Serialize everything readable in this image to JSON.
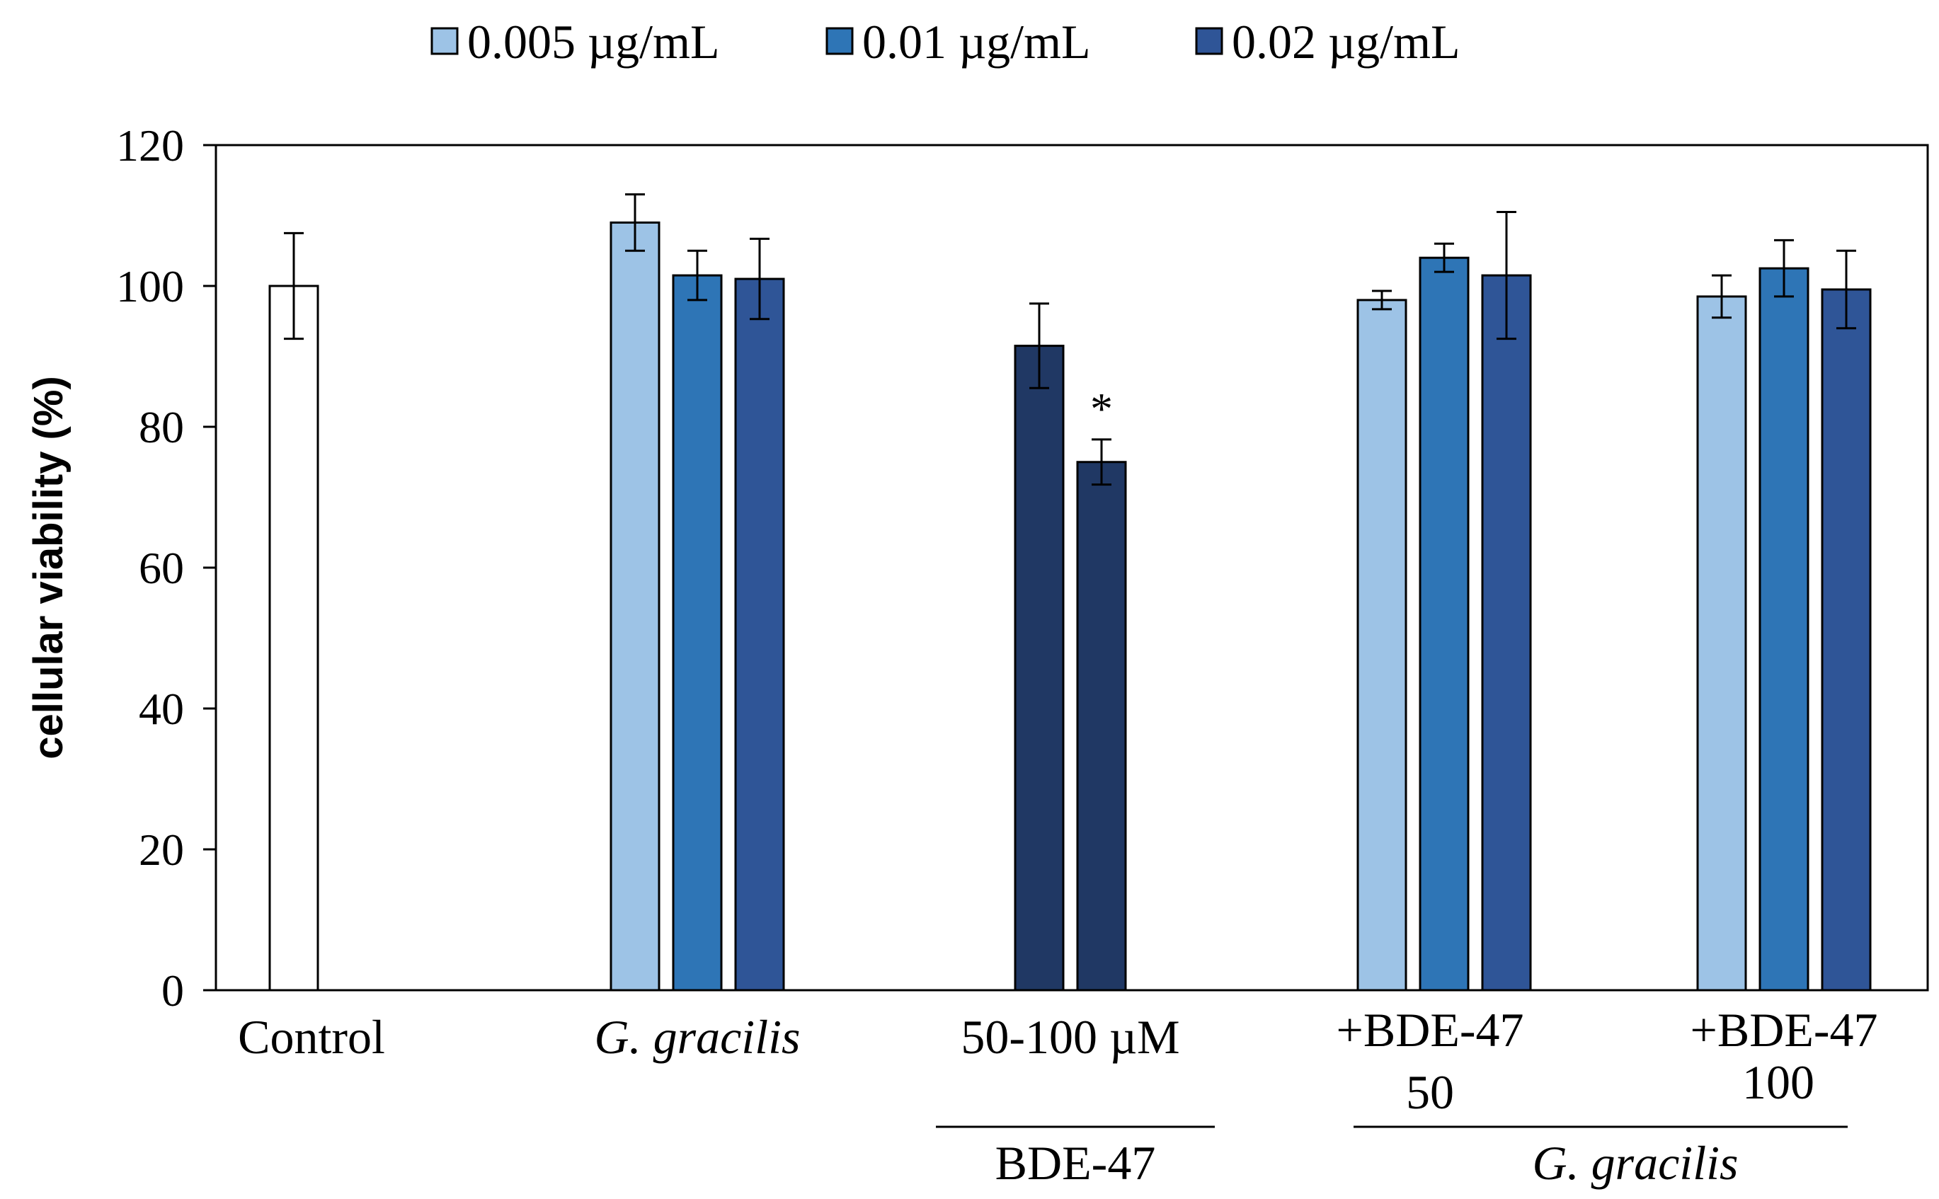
{
  "chart_data": {
    "type": "bar",
    "ylabel": "cellular viability (%)",
    "ylim": [
      0,
      120
    ],
    "yticks": [
      0,
      20,
      40,
      60,
      80,
      100,
      120
    ],
    "grid": false,
    "legend": {
      "placement": "top",
      "entries": [
        {
          "label": "0.005 µg/mL",
          "color": "#9dc3e6"
        },
        {
          "label": "0.01 µg/mL",
          "color": "#2e75b6"
        },
        {
          "label": "0.02 µg/mL",
          "color": "#2f5597"
        }
      ]
    },
    "groups": [
      {
        "label": "Control",
        "italic": false,
        "bars": [
          {
            "value": 100,
            "error": 7.5,
            "color": "#ffffff",
            "star": false
          }
        ]
      },
      {
        "label": "G. gracilis",
        "italic": true,
        "bars": [
          {
            "value": 109,
            "error": 4,
            "color": "#9dc3e6",
            "star": false
          },
          {
            "value": 101.5,
            "error": 3.5,
            "color": "#2e75b6",
            "star": false
          },
          {
            "value": 101,
            "error": 5.7,
            "color": "#2f5597",
            "star": false
          }
        ]
      },
      {
        "label": "50-100 µM",
        "italic": false,
        "bars": [
          {
            "value": 91.5,
            "error": 6,
            "color": "#203864",
            "star": false
          },
          {
            "value": 75,
            "error": 3.2,
            "color": "#203864",
            "star": true
          }
        ]
      },
      {
        "label": "+BDE-47",
        "sublabel": "50",
        "italic": false,
        "bars": [
          {
            "value": 98,
            "error": 1.3,
            "color": "#9dc3e6",
            "star": false
          },
          {
            "value": 104,
            "error": 2,
            "color": "#2e75b6",
            "star": false
          },
          {
            "value": 101.5,
            "error": 9,
            "color": "#2f5597",
            "star": false
          }
        ]
      },
      {
        "label": "+BDE-47",
        "sublabel": "100",
        "italic": false,
        "bars": [
          {
            "value": 98.5,
            "error": 3,
            "color": "#9dc3e6",
            "star": false
          },
          {
            "value": 102.5,
            "error": 4,
            "color": "#2e75b6",
            "star": false
          },
          {
            "value": 99.5,
            "error": 5.5,
            "color": "#2f5597",
            "star": false
          }
        ]
      }
    ],
    "annotations": [
      {
        "text": "*",
        "meaning": "significance marker"
      },
      {
        "text": "BDE-47",
        "spans_groups": [
          2
        ],
        "italic": false
      },
      {
        "text": "G. gracilis",
        "spans_groups": [
          3,
          4
        ],
        "italic": true
      }
    ]
  }
}
